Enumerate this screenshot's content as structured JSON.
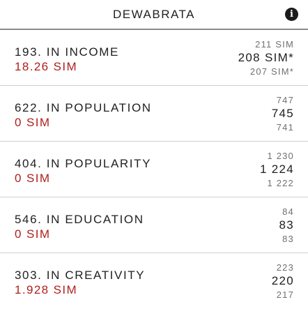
{
  "header": {
    "title": "DEWABRATA",
    "icon": "info-icon"
  },
  "rows": [
    {
      "rank": "193. IN INCOME",
      "value": "18.26 SIM",
      "above": "211 SIM",
      "current": "208 SIM*",
      "below": "207 SIM*"
    },
    {
      "rank": "622. IN POPULATION",
      "value": "0 SIM",
      "above": "747",
      "current": "745",
      "below": "741"
    },
    {
      "rank": "404. IN POPULARITY",
      "value": "0 SIM",
      "above": "1 230",
      "current": "1 224",
      "below": "1 222"
    },
    {
      "rank": "546. IN EDUCATION",
      "value": "0 SIM",
      "above": "84",
      "current": "83",
      "below": "83"
    },
    {
      "rank": "303. IN CREATIVITY",
      "value": "1.928 SIM",
      "above": "223",
      "current": "220",
      "below": "217"
    }
  ],
  "colors": {
    "value_red": "#b01e1e",
    "text": "#1e1e1e",
    "muted": "#707070"
  }
}
